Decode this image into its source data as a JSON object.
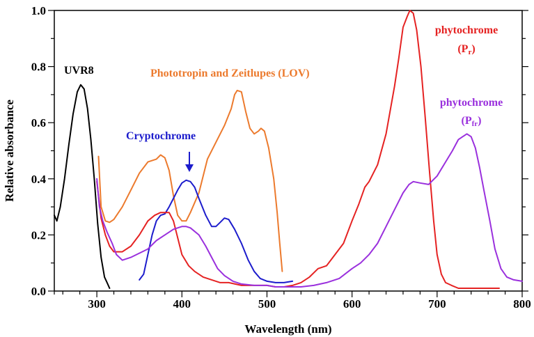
{
  "chart_data": {
    "type": "line",
    "xlabel": "Wavelength (nm)",
    "ylabel": "Relative absorbance",
    "xlim": [
      250,
      800
    ],
    "ylim": [
      0,
      1.0
    ],
    "x_ticks": [
      "300",
      "400",
      "500",
      "600",
      "700",
      "800"
    ],
    "y_ticks": [
      "0.0",
      "0.2",
      "0.4",
      "0.6",
      "0.8",
      "1.0"
    ],
    "grid": false,
    "series": [
      {
        "name": "UVR8",
        "color": "#000000",
        "points": [
          [
            250,
            0.27
          ],
          [
            253,
            0.25
          ],
          [
            257,
            0.3
          ],
          [
            262,
            0.4
          ],
          [
            267,
            0.52
          ],
          [
            272,
            0.63
          ],
          [
            277,
            0.71
          ],
          [
            281,
            0.735
          ],
          [
            285,
            0.72
          ],
          [
            289,
            0.65
          ],
          [
            293,
            0.54
          ],
          [
            297,
            0.4
          ],
          [
            301,
            0.24
          ],
          [
            305,
            0.12
          ],
          [
            309,
            0.05
          ],
          [
            312,
            0.03
          ],
          [
            315,
            0.01
          ]
        ]
      },
      {
        "name": "Phototropin and Zeitlupes (LOV)",
        "color": "#ec7a2d",
        "points": [
          [
            302,
            0.48
          ],
          [
            305,
            0.3
          ],
          [
            310,
            0.25
          ],
          [
            315,
            0.245
          ],
          [
            320,
            0.255
          ],
          [
            330,
            0.3
          ],
          [
            340,
            0.36
          ],
          [
            350,
            0.42
          ],
          [
            360,
            0.46
          ],
          [
            370,
            0.47
          ],
          [
            375,
            0.485
          ],
          [
            380,
            0.475
          ],
          [
            385,
            0.43
          ],
          [
            390,
            0.34
          ],
          [
            395,
            0.27
          ],
          [
            400,
            0.25
          ],
          [
            405,
            0.25
          ],
          [
            410,
            0.28
          ],
          [
            420,
            0.35
          ],
          [
            430,
            0.47
          ],
          [
            440,
            0.53
          ],
          [
            450,
            0.59
          ],
          [
            458,
            0.65
          ],
          [
            462,
            0.7
          ],
          [
            465,
            0.715
          ],
          [
            470,
            0.71
          ],
          [
            475,
            0.64
          ],
          [
            480,
            0.58
          ],
          [
            485,
            0.56
          ],
          [
            490,
            0.57
          ],
          [
            493,
            0.58
          ],
          [
            497,
            0.57
          ],
          [
            502,
            0.51
          ],
          [
            508,
            0.4
          ],
          [
            512,
            0.28
          ],
          [
            515,
            0.17
          ],
          [
            518,
            0.07
          ]
        ]
      },
      {
        "name": "Cryptochrome",
        "color": "#1c1ccc",
        "points": [
          [
            350,
            0.04
          ],
          [
            355,
            0.06
          ],
          [
            360,
            0.13
          ],
          [
            365,
            0.2
          ],
          [
            370,
            0.25
          ],
          [
            375,
            0.27
          ],
          [
            380,
            0.275
          ],
          [
            385,
            0.3
          ],
          [
            390,
            0.33
          ],
          [
            395,
            0.36
          ],
          [
            400,
            0.385
          ],
          [
            405,
            0.395
          ],
          [
            410,
            0.39
          ],
          [
            415,
            0.37
          ],
          [
            420,
            0.33
          ],
          [
            428,
            0.27
          ],
          [
            435,
            0.23
          ],
          [
            440,
            0.23
          ],
          [
            445,
            0.245
          ],
          [
            450,
            0.26
          ],
          [
            455,
            0.255
          ],
          [
            462,
            0.22
          ],
          [
            470,
            0.17
          ],
          [
            478,
            0.11
          ],
          [
            485,
            0.07
          ],
          [
            492,
            0.045
          ],
          [
            500,
            0.035
          ],
          [
            510,
            0.03
          ],
          [
            520,
            0.03
          ],
          [
            530,
            0.035
          ]
        ]
      },
      {
        "name": "phytochrome (Pr)",
        "color": "#e52222",
        "points": [
          [
            300,
            0.39
          ],
          [
            305,
            0.26
          ],
          [
            310,
            0.2
          ],
          [
            315,
            0.16
          ],
          [
            320,
            0.14
          ],
          [
            330,
            0.14
          ],
          [
            340,
            0.16
          ],
          [
            350,
            0.2
          ],
          [
            360,
            0.25
          ],
          [
            368,
            0.27
          ],
          [
            375,
            0.28
          ],
          [
            385,
            0.28
          ],
          [
            390,
            0.25
          ],
          [
            395,
            0.19
          ],
          [
            400,
            0.13
          ],
          [
            408,
            0.09
          ],
          [
            415,
            0.07
          ],
          [
            425,
            0.05
          ],
          [
            435,
            0.04
          ],
          [
            445,
            0.03
          ],
          [
            455,
            0.03
          ],
          [
            470,
            0.02
          ],
          [
            485,
            0.02
          ],
          [
            500,
            0.02
          ],
          [
            510,
            0.015
          ],
          [
            520,
            0.015
          ],
          [
            530,
            0.02
          ],
          [
            540,
            0.03
          ],
          [
            550,
            0.05
          ],
          [
            560,
            0.08
          ],
          [
            570,
            0.09
          ],
          [
            580,
            0.13
          ],
          [
            590,
            0.17
          ],
          [
            600,
            0.25
          ],
          [
            608,
            0.31
          ],
          [
            615,
            0.37
          ],
          [
            620,
            0.39
          ],
          [
            630,
            0.45
          ],
          [
            640,
            0.56
          ],
          [
            650,
            0.73
          ],
          [
            655,
            0.83
          ],
          [
            660,
            0.94
          ],
          [
            665,
            0.98
          ],
          [
            668,
            1.0
          ],
          [
            672,
            0.99
          ],
          [
            676,
            0.93
          ],
          [
            681,
            0.8
          ],
          [
            686,
            0.62
          ],
          [
            691,
            0.43
          ],
          [
            696,
            0.25
          ],
          [
            700,
            0.13
          ],
          [
            705,
            0.06
          ],
          [
            710,
            0.03
          ],
          [
            717,
            0.02
          ],
          [
            725,
            0.01
          ],
          [
            745,
            0.01
          ],
          [
            760,
            0.01
          ],
          [
            773,
            0.01
          ]
        ]
      },
      {
        "name": "phytochrome (Pfr)",
        "color": "#9a30dd",
        "points": [
          [
            300,
            0.4
          ],
          [
            303,
            0.3
          ],
          [
            307,
            0.25
          ],
          [
            312,
            0.21
          ],
          [
            318,
            0.17
          ],
          [
            323,
            0.13
          ],
          [
            330,
            0.11
          ],
          [
            340,
            0.12
          ],
          [
            350,
            0.135
          ],
          [
            360,
            0.15
          ],
          [
            370,
            0.18
          ],
          [
            380,
            0.2
          ],
          [
            390,
            0.22
          ],
          [
            400,
            0.23
          ],
          [
            405,
            0.23
          ],
          [
            410,
            0.225
          ],
          [
            420,
            0.2
          ],
          [
            428,
            0.16
          ],
          [
            435,
            0.12
          ],
          [
            442,
            0.08
          ],
          [
            450,
            0.055
          ],
          [
            460,
            0.035
          ],
          [
            470,
            0.025
          ],
          [
            485,
            0.02
          ],
          [
            500,
            0.02
          ],
          [
            510,
            0.015
          ],
          [
            525,
            0.015
          ],
          [
            540,
            0.015
          ],
          [
            555,
            0.02
          ],
          [
            570,
            0.03
          ],
          [
            585,
            0.045
          ],
          [
            600,
            0.08
          ],
          [
            610,
            0.1
          ],
          [
            620,
            0.13
          ],
          [
            630,
            0.17
          ],
          [
            640,
            0.23
          ],
          [
            650,
            0.29
          ],
          [
            660,
            0.35
          ],
          [
            667,
            0.38
          ],
          [
            672,
            0.39
          ],
          [
            680,
            0.385
          ],
          [
            690,
            0.38
          ],
          [
            700,
            0.41
          ],
          [
            710,
            0.46
          ],
          [
            718,
            0.5
          ],
          [
            725,
            0.54
          ],
          [
            730,
            0.55
          ],
          [
            735,
            0.56
          ],
          [
            740,
            0.55
          ],
          [
            745,
            0.51
          ],
          [
            750,
            0.44
          ],
          [
            755,
            0.36
          ],
          [
            762,
            0.25
          ],
          [
            768,
            0.15
          ],
          [
            775,
            0.08
          ],
          [
            782,
            0.05
          ],
          [
            790,
            0.04
          ],
          [
            800,
            0.035
          ]
        ]
      }
    ],
    "annotations": [
      {
        "key": "uvr8",
        "text": "UVR8",
        "color": "#000000"
      },
      {
        "key": "lov",
        "text": "Phototropin and Zeitlupes (LOV)",
        "color": "#ec7a2d"
      },
      {
        "key": "crypto",
        "text": "Cryptochrome",
        "color": "#1c1ccc"
      },
      {
        "key": "pr_title",
        "text": "phytochrome",
        "color": "#e52222"
      },
      {
        "key": "pfr_title",
        "text": "phytochrome",
        "color": "#9a30dd"
      }
    ],
    "pr_label": {
      "open": "(P",
      "sub": "r",
      "close": ")"
    },
    "pfr_label": {
      "open": "(P",
      "sub": "fr",
      "close": ")"
    }
  }
}
